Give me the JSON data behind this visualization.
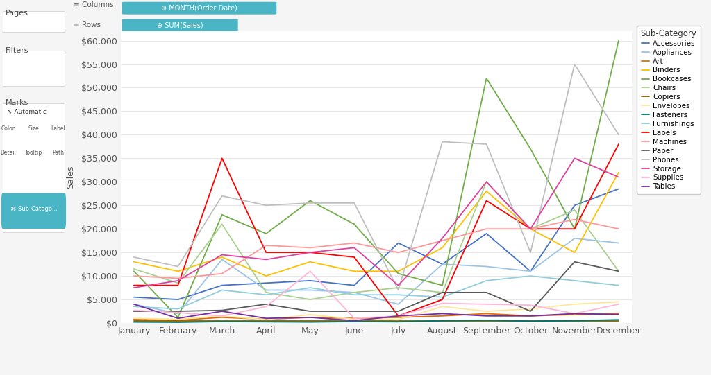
{
  "months": [
    "January",
    "February",
    "March",
    "April",
    "May",
    "June",
    "July",
    "August",
    "September",
    "October",
    "November",
    "December"
  ],
  "series": {
    "Accessories": [
      5500,
      5000,
      8000,
      8500,
      9000,
      8000,
      17000,
      12500,
      19000,
      11000,
      25000,
      28500
    ],
    "Appliances": [
      4000,
      2000,
      13500,
      7000,
      7000,
      6500,
      4000,
      12500,
      12000,
      11000,
      18000,
      17000
    ],
    "Art": [
      800,
      600,
      1200,
      800,
      1200,
      1000,
      1200,
      1500,
      2000,
      1500,
      1800,
      2000
    ],
    "Binders": [
      13000,
      11000,
      14000,
      10000,
      13000,
      11000,
      11000,
      16000,
      28000,
      20000,
      15000,
      32000
    ],
    "Bookcases": [
      11000,
      1200,
      23000,
      19000,
      26000,
      21000,
      10500,
      8000,
      52000,
      37000,
      20000,
      60000
    ],
    "Chairs": [
      11500,
      8500,
      21000,
      6500,
      5000,
      6500,
      7500,
      6500,
      30000,
      20000,
      24000,
      11000
    ],
    "Copiers": [
      500,
      500,
      500,
      500,
      500,
      500,
      500,
      500,
      500,
      500,
      500,
      500
    ],
    "Envelopes": [
      1000,
      800,
      1500,
      700,
      1800,
      800,
      700,
      3500,
      2500,
      3000,
      4000,
      4500
    ],
    "Fasteners": [
      200,
      150,
      300,
      250,
      200,
      300,
      250,
      500,
      600,
      400,
      500,
      700
    ],
    "Furnishings": [
      3500,
      3000,
      7000,
      6000,
      7500,
      6000,
      6000,
      5500,
      9000,
      10000,
      9000,
      8000
    ],
    "Labels": [
      8000,
      8000,
      35000,
      15000,
      15000,
      14000,
      1500,
      5000,
      26000,
      20000,
      20000,
      38000
    ],
    "Machines": [
      10000,
      9500,
      10500,
      16500,
      16000,
      17000,
      15000,
      17500,
      20000,
      20000,
      22000,
      20000
    ],
    "Paper": [
      2500,
      2500,
      2700,
      4000,
      2500,
      2500,
      2500,
      6500,
      6500,
      2500,
      13000,
      11000
    ],
    "Phones": [
      14000,
      12000,
      27000,
      25000,
      25500,
      25500,
      7000,
      38500,
      38000,
      15000,
      55000,
      40000
    ],
    "Storage": [
      7500,
      9000,
      14500,
      13500,
      15000,
      16000,
      8000,
      18000,
      30000,
      20000,
      35000,
      31000
    ],
    "Supplies": [
      2700,
      2200,
      1500,
      3500,
      11000,
      1000,
      1500,
      4200,
      4000,
      3800,
      2000,
      4000
    ],
    "Tables": [
      4000,
      1000,
      2500,
      1000,
      1200,
      500,
      1500,
      2000,
      1500,
      1500,
      2000,
      1800
    ]
  },
  "colors": {
    "Accessories": "#4472c4",
    "Appliances": "#9dc3e6",
    "Art": "#e36c09",
    "Binders": "#ffc000",
    "Bookcases": "#70ad47",
    "Chairs": "#a9d18e",
    "Copiers": "#806000",
    "Envelopes": "#ffe699",
    "Fasteners": "#00736f",
    "Furnishings": "#92cddc",
    "Labels": "#ff0000",
    "Machines": "#ff9999",
    "Paper": "#595959",
    "Phones": "#bfbfbf",
    "Storage": "#e040a0",
    "Supplies": "#ffb6d9",
    "Tables": "#7030a0"
  },
  "ylim": [
    0,
    62000
  ],
  "yticks": [
    0,
    5000,
    10000,
    15000,
    20000,
    25000,
    30000,
    35000,
    40000,
    45000,
    50000,
    55000,
    60000
  ],
  "ylabel": "Sales",
  "bg_color": "#f5f5f5",
  "plot_bg": "#ffffff",
  "grid_color": "#e8e8e8",
  "sidebar_bg": "#ebebeb",
  "topbar_bg": "#ffffff",
  "legend_title": "Sub-Category",
  "pill_color": "#4ab5c4",
  "pill_text_color": "#ffffff",
  "col_pill_text": "⊕ MONTH(Order Date)",
  "row_pill_text": "⊕ SUM(Sales)",
  "pages_label": "Pages",
  "filters_label": "Filters",
  "marks_label": "Marks",
  "columns_label": "≡ Columns",
  "rows_label": "≡ Rows"
}
